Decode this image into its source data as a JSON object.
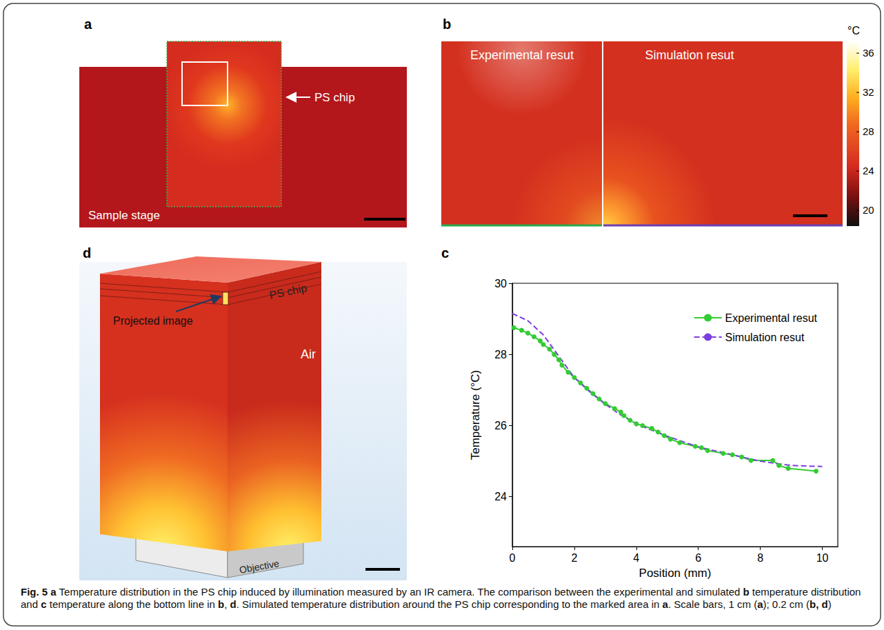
{
  "panels": {
    "a": {
      "letter": "a",
      "labels": {
        "chip": "PS chip",
        "stage": "Sample stage"
      }
    },
    "b": {
      "letter": "b",
      "left_title": "Experimental resut",
      "right_title": "Simulation resut",
      "colorbar": {
        "title": "°C",
        "range": [
          18.4,
          37.2
        ],
        "ticks": [
          20,
          24,
          28,
          32,
          36
        ]
      }
    },
    "c": {
      "letter": "c"
    },
    "d": {
      "letter": "d",
      "labels": {
        "chip": "PS chip",
        "image": "Projected image",
        "air": "Air",
        "objective": "Objective"
      }
    }
  },
  "chart_data": {
    "type": "line",
    "x_label": "Position (mm)",
    "y_label": "Temperature (°C)",
    "xlim": [
      0,
      10.5
    ],
    "ylim": [
      22.6,
      30
    ],
    "xticks": [
      0,
      2,
      4,
      6,
      8,
      10
    ],
    "yticks": [
      24,
      26,
      28,
      30
    ],
    "grid": false,
    "legend": "top-right",
    "series": [
      {
        "name": "Experimental resut",
        "color": "#33cc33",
        "marker": "circle",
        "line_style": "solid",
        "x": [
          0.05,
          0.3,
          0.5,
          0.7,
          0.9,
          1.0,
          1.2,
          1.35,
          1.5,
          1.6,
          1.8,
          2.0,
          2.2,
          2.4,
          2.6,
          2.8,
          3.0,
          3.3,
          3.5,
          3.6,
          3.8,
          4.0,
          4.2,
          4.5,
          4.7,
          4.9,
          5.1,
          5.4,
          5.9,
          6.1,
          6.3,
          6.8,
          7.1,
          7.4,
          7.7,
          8.4,
          8.6,
          8.9,
          9.8
        ],
        "values": [
          28.75,
          28.68,
          28.6,
          28.5,
          28.38,
          28.28,
          28.15,
          28.0,
          27.85,
          27.7,
          27.5,
          27.35,
          27.2,
          27.05,
          26.9,
          26.75,
          26.62,
          26.48,
          26.38,
          26.28,
          26.15,
          26.05,
          26.0,
          25.92,
          25.82,
          25.72,
          25.62,
          25.52,
          25.42,
          25.38,
          25.3,
          25.22,
          25.18,
          25.12,
          25.02,
          25.02,
          24.88,
          24.8,
          24.72
        ]
      },
      {
        "name": "Simulation resut",
        "color": "#7b3fe0",
        "marker": "none",
        "line_style": "dashed",
        "x": [
          0,
          0.5,
          1.0,
          1.5,
          2.0,
          2.5,
          3.0,
          3.5,
          4.0,
          5.0,
          6.0,
          7.0,
          8.0,
          9.0,
          10.0
        ],
        "values": [
          29.15,
          28.95,
          28.55,
          27.95,
          27.35,
          26.95,
          26.6,
          26.3,
          26.05,
          25.7,
          25.4,
          25.2,
          25.0,
          24.88,
          24.85
        ]
      }
    ]
  },
  "caption": [
    {
      "text": "Fig. 5 a",
      "bold": true
    },
    {
      "text": " Temperature distribution in the PS chip induced by illumination measured by an IR camera. The comparison between the experimental and simulated ",
      "bold": false
    },
    {
      "text": "b",
      "bold": true
    },
    {
      "text": " temperature distribution and ",
      "bold": false
    },
    {
      "text": "c",
      "bold": true
    },
    {
      "text": " temperature along the bottom line in ",
      "bold": false
    },
    {
      "text": "b",
      "bold": true
    },
    {
      "text": ", ",
      "bold": false
    },
    {
      "text": "d",
      "bold": true
    },
    {
      "text": ". Simulated temperature distribution around the PS chip corresponding to the marked area in ",
      "bold": false
    },
    {
      "text": "a",
      "bold": true
    },
    {
      "text": ". Scale bars, 1 cm (",
      "bold": false
    },
    {
      "text": "a",
      "bold": true
    },
    {
      "text": "); 0.2 cm (",
      "bold": false
    },
    {
      "text": "b, d",
      "bold": true
    },
    {
      "text": ")",
      "bold": false
    }
  ]
}
